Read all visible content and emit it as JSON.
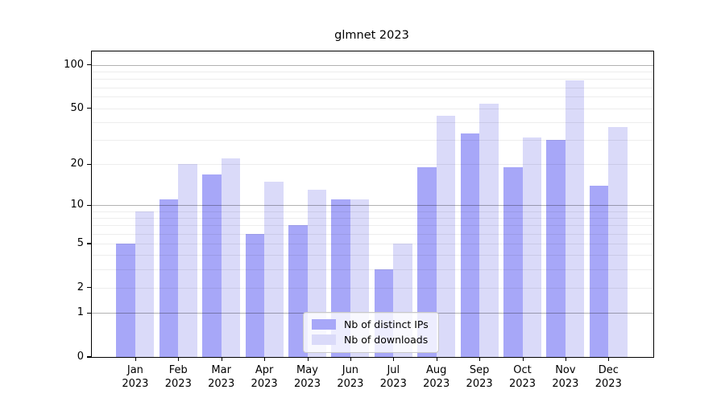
{
  "title": "glmnet 2023",
  "chart_data": {
    "type": "bar",
    "title": "glmnet 2023",
    "categories": [
      "Jan 2023",
      "Feb 2023",
      "Mar 2023",
      "Apr 2023",
      "May 2023",
      "Jun 2023",
      "Jul 2023",
      "Aug 2023",
      "Sep 2023",
      "Oct 2023",
      "Nov 2023",
      "Dec 2023"
    ],
    "x_tick_line2": "2023",
    "series": [
      {
        "name": "Nb of distinct IPs",
        "color": "#a7a7f8",
        "values": [
          5,
          11,
          17,
          6,
          7,
          11,
          3,
          19,
          33,
          19,
          30,
          14
        ]
      },
      {
        "name": "Nb of downloads",
        "color": "#dadaf9",
        "values": [
          9,
          20,
          22,
          15,
          13,
          11,
          5,
          44,
          54,
          31,
          78,
          37
        ]
      }
    ],
    "xlabel": "",
    "ylabel": "",
    "y_scale": "log1p",
    "ylim": [
      0,
      124
    ],
    "y_ticks": [
      0,
      1,
      2,
      5,
      10,
      20,
      50,
      100
    ],
    "major_gridlines": [
      1,
      10,
      100
    ],
    "minor_gridlines": [
      2,
      3,
      4,
      5,
      6,
      7,
      8,
      9,
      20,
      30,
      40,
      50,
      60,
      70,
      80,
      90
    ],
    "grid": "horizontal",
    "legend_position": "bottom-center",
    "colors": {
      "major_grid": "#b2b2b2",
      "minor_grid": "#ededed",
      "axis": "#000000",
      "background": "#ffffff"
    }
  }
}
